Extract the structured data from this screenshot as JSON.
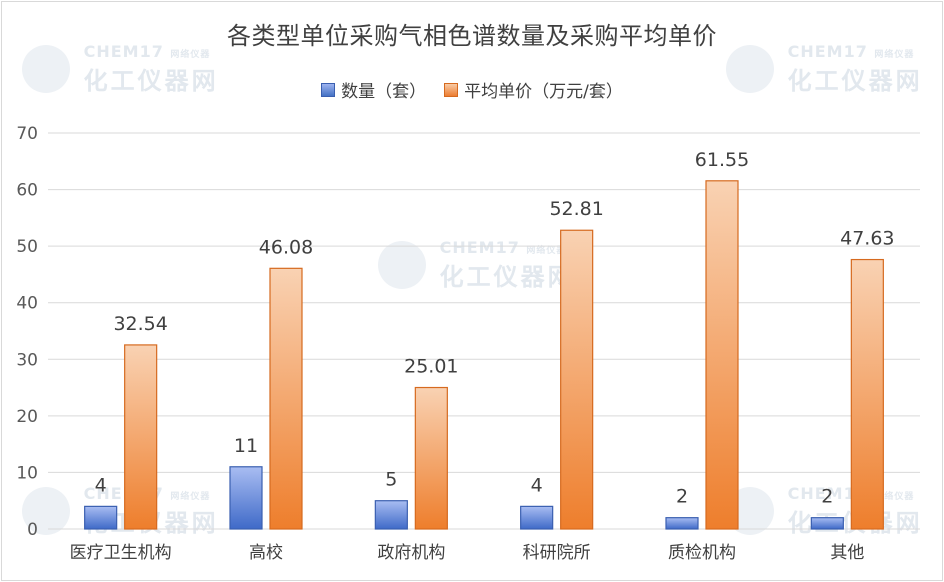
{
  "chart_data": {
    "type": "bar",
    "title": "各类型单位采购气相色谱数量及采购平均单价",
    "categories": [
      "医疗卫生机构",
      "高校",
      "政府机构",
      "科研院所",
      "质检机构",
      "其他"
    ],
    "series": [
      {
        "name": "数量（套）",
        "values": [
          4,
          11,
          5,
          4,
          2,
          2
        ],
        "color": "#4472c4"
      },
      {
        "name": "平均单价（万元/套）",
        "values": [
          32.54,
          46.08,
          25.01,
          52.81,
          61.55,
          47.63
        ],
        "color": "#ed7d31"
      }
    ],
    "ylim": [
      0,
      70
    ],
    "yticks": [
      0,
      10,
      20,
      30,
      40,
      50,
      60,
      70
    ],
    "grid": true,
    "legend_position": "top"
  },
  "watermark": {
    "brand": "CHEM17",
    "tagline": "网络仪器",
    "name": "化工仪器网"
  }
}
